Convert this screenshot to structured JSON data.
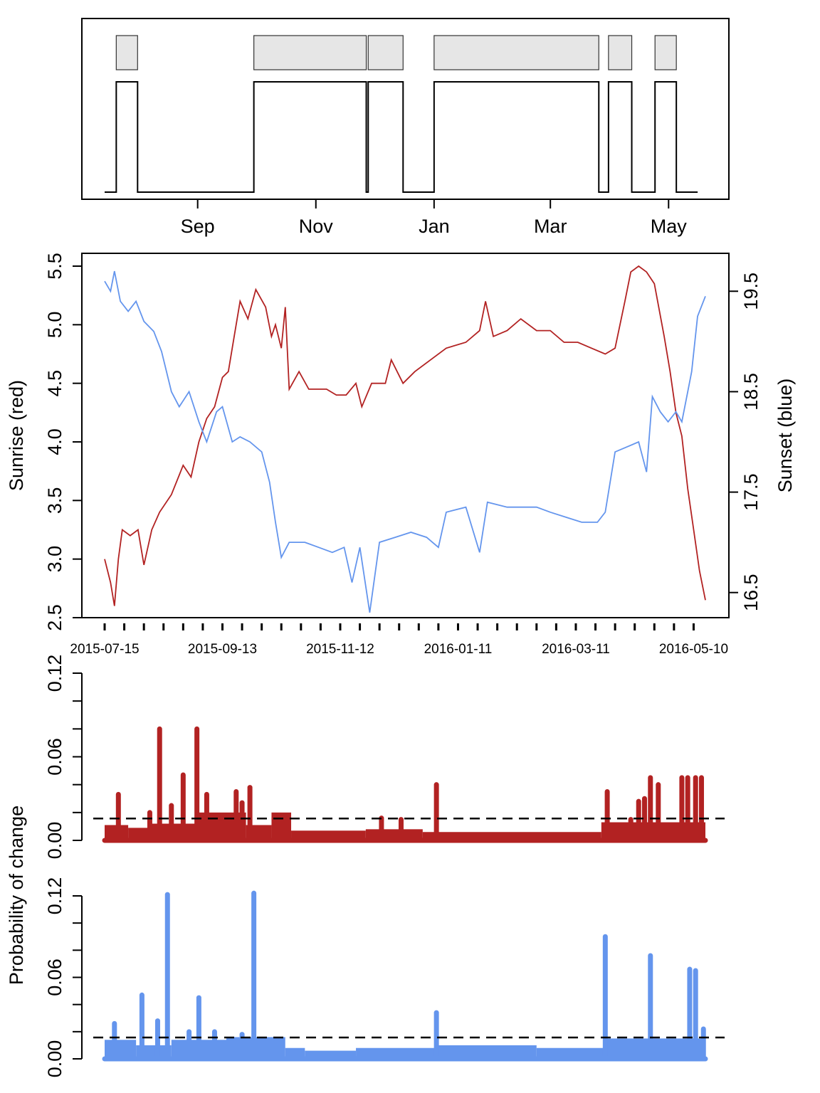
{
  "chart_data": [
    {
      "type": "step",
      "panel": "state-timeline",
      "x_unit": "date",
      "xlim": [
        "2015-07-15",
        "2016-05-20"
      ],
      "x_ticks": [
        {
          "date": "2015-09-01",
          "label": "Sep"
        },
        {
          "date": "2015-11-01",
          "label": "Nov"
        },
        {
          "date": "2016-01-01",
          "label": "Jan"
        },
        {
          "date": "2016-03-01",
          "label": "Mar"
        },
        {
          "date": "2016-05-01",
          "label": "May"
        }
      ],
      "segments": [
        {
          "start": "2015-07-21",
          "end": "2015-08-01"
        },
        {
          "start": "2015-09-30",
          "end": "2015-11-27"
        },
        {
          "start": "2015-11-28",
          "end": "2015-12-16"
        },
        {
          "start": "2016-01-01",
          "end": "2016-03-26"
        },
        {
          "start": "2016-03-31",
          "end": "2016-04-12"
        },
        {
          "start": "2016-04-24",
          "end": "2016-05-05"
        }
      ],
      "state_values": [
        {
          "date": "2015-07-15",
          "state": 0
        },
        {
          "date": "2015-07-21",
          "state": 1
        },
        {
          "date": "2015-08-01",
          "state": 0
        },
        {
          "date": "2015-09-30",
          "state": 1
        },
        {
          "date": "2015-11-27",
          "state": 0
        },
        {
          "date": "2015-11-28",
          "state": 1
        },
        {
          "date": "2015-12-16",
          "state": 0
        },
        {
          "date": "2016-01-01",
          "state": 1
        },
        {
          "date": "2016-03-26",
          "state": 0
        },
        {
          "date": "2016-03-31",
          "state": 1
        },
        {
          "date": "2016-04-12",
          "state": 0
        },
        {
          "date": "2016-04-24",
          "state": 1
        },
        {
          "date": "2016-05-05",
          "state": 0
        },
        {
          "date": "2016-05-16",
          "state": 0
        }
      ]
    },
    {
      "type": "line",
      "panel": "sunrise-sunset",
      "x_unit": "date",
      "xlim": [
        "2015-07-15",
        "2016-05-16"
      ],
      "x_tick_labels": [
        "2015-07-15",
        "2015-09-13",
        "2015-11-12",
        "2016-01-11",
        "2016-03-11",
        "2016-05-10"
      ],
      "x_tick_dates": [
        "2015-07-15",
        "2015-09-13",
        "2015-11-12",
        "2016-01-11",
        "2016-03-11",
        "2016-05-10"
      ],
      "ylabel": "Sunrise (red)",
      "ylim": [
        2.5,
        5.5
      ],
      "y_ticks": [
        "2.5",
        "3.0",
        "3.5",
        "4.0",
        "4.5",
        "5.0",
        "5.5"
      ],
      "y2label": "Sunset (blue)",
      "y2lim": [
        16.25,
        19.75
      ],
      "y2_ticks": [
        "16.5",
        "17.5",
        "18.5",
        "19.5"
      ],
      "series": [
        {
          "color": "#b22222",
          "axis": "left",
          "points": [
            [
              "2015-07-15",
              3.0
            ],
            [
              "2015-07-18",
              2.8
            ],
            [
              "2015-07-20",
              2.6
            ],
            [
              "2015-07-22",
              3.0
            ],
            [
              "2015-07-24",
              3.25
            ],
            [
              "2015-07-28",
              3.2
            ],
            [
              "2015-08-01",
              3.25
            ],
            [
              "2015-08-04",
              2.95
            ],
            [
              "2015-08-08",
              3.25
            ],
            [
              "2015-08-12",
              3.4
            ],
            [
              "2015-08-18",
              3.55
            ],
            [
              "2015-08-24",
              3.8
            ],
            [
              "2015-08-28",
              3.7
            ],
            [
              "2015-09-01",
              4.0
            ],
            [
              "2015-09-05",
              4.2
            ],
            [
              "2015-09-09",
              4.3
            ],
            [
              "2015-09-13",
              4.55
            ],
            [
              "2015-09-16",
              4.6
            ],
            [
              "2015-09-19",
              4.9
            ],
            [
              "2015-09-22",
              5.2
            ],
            [
              "2015-09-26",
              5.05
            ],
            [
              "2015-09-30",
              5.3
            ],
            [
              "2015-10-05",
              5.15
            ],
            [
              "2015-10-08",
              4.9
            ],
            [
              "2015-10-10",
              5.0
            ],
            [
              "2015-10-13",
              4.8
            ],
            [
              "2015-10-15",
              5.15
            ],
            [
              "2015-10-17",
              4.45
            ],
            [
              "2015-10-22",
              4.6
            ],
            [
              "2015-10-27",
              4.45
            ],
            [
              "2015-11-05",
              4.45
            ],
            [
              "2015-11-10",
              4.4
            ],
            [
              "2015-11-15",
              4.4
            ],
            [
              "2015-11-20",
              4.5
            ],
            [
              "2015-11-23",
              4.3
            ],
            [
              "2015-11-28",
              4.5
            ],
            [
              "2015-12-05",
              4.5
            ],
            [
              "2015-12-08",
              4.7
            ],
            [
              "2015-12-14",
              4.5
            ],
            [
              "2015-12-20",
              4.6
            ],
            [
              "2015-12-28",
              4.7
            ],
            [
              "2016-01-05",
              4.8
            ],
            [
              "2016-01-15",
              4.85
            ],
            [
              "2016-01-22",
              4.95
            ],
            [
              "2016-01-25",
              5.2
            ],
            [
              "2016-01-29",
              4.9
            ],
            [
              "2016-02-05",
              4.95
            ],
            [
              "2016-02-12",
              5.05
            ],
            [
              "2016-02-20",
              4.95
            ],
            [
              "2016-02-27",
              4.95
            ],
            [
              "2016-03-05",
              4.85
            ],
            [
              "2016-03-12",
              4.85
            ],
            [
              "2016-03-19",
              4.8
            ],
            [
              "2016-03-26",
              4.75
            ],
            [
              "2016-03-31",
              4.8
            ],
            [
              "2016-04-05",
              5.2
            ],
            [
              "2016-04-08",
              5.45
            ],
            [
              "2016-04-12",
              5.5
            ],
            [
              "2016-04-16",
              5.45
            ],
            [
              "2016-04-20",
              5.35
            ],
            [
              "2016-04-25",
              4.9
            ],
            [
              "2016-04-28",
              4.6
            ],
            [
              "2016-05-01",
              4.25
            ],
            [
              "2016-05-04",
              4.05
            ],
            [
              "2016-05-07",
              3.6
            ],
            [
              "2016-05-10",
              3.25
            ],
            [
              "2016-05-13",
              2.9
            ],
            [
              "2016-05-16",
              2.65
            ]
          ]
        },
        {
          "color": "#6495ed",
          "axis": "right",
          "points": [
            [
              "2015-07-15",
              19.6
            ],
            [
              "2015-07-18",
              19.5
            ],
            [
              "2015-07-20",
              19.7
            ],
            [
              "2015-07-23",
              19.4
            ],
            [
              "2015-07-27",
              19.3
            ],
            [
              "2015-07-31",
              19.4
            ],
            [
              "2015-08-04",
              19.2
            ],
            [
              "2015-08-09",
              19.1
            ],
            [
              "2015-08-13",
              18.9
            ],
            [
              "2015-08-18",
              18.5
            ],
            [
              "2015-08-22",
              18.35
            ],
            [
              "2015-08-27",
              18.5
            ],
            [
              "2015-09-01",
              18.2
            ],
            [
              "2015-09-05",
              18.0
            ],
            [
              "2015-09-10",
              18.3
            ],
            [
              "2015-09-13",
              18.35
            ],
            [
              "2015-09-18",
              18.0
            ],
            [
              "2015-09-22",
              18.05
            ],
            [
              "2015-09-27",
              18.0
            ],
            [
              "2015-10-03",
              17.9
            ],
            [
              "2015-10-07",
              17.6
            ],
            [
              "2015-10-10",
              17.2
            ],
            [
              "2015-10-13",
              16.85
            ],
            [
              "2015-10-17",
              17.0
            ],
            [
              "2015-10-25",
              17.0
            ],
            [
              "2015-11-01",
              16.95
            ],
            [
              "2015-11-08",
              16.9
            ],
            [
              "2015-11-14",
              16.95
            ],
            [
              "2015-11-18",
              16.6
            ],
            [
              "2015-11-22",
              16.95
            ],
            [
              "2015-11-27",
              16.3
            ],
            [
              "2015-12-02",
              17.0
            ],
            [
              "2015-12-10",
              17.05
            ],
            [
              "2015-12-18",
              17.1
            ],
            [
              "2015-12-26",
              17.05
            ],
            [
              "2016-01-01",
              16.95
            ],
            [
              "2016-01-05",
              17.3
            ],
            [
              "2016-01-15",
              17.35
            ],
            [
              "2016-01-22",
              16.9
            ],
            [
              "2016-01-26",
              17.4
            ],
            [
              "2016-02-05",
              17.35
            ],
            [
              "2016-02-13",
              17.35
            ],
            [
              "2016-02-20",
              17.35
            ],
            [
              "2016-02-27",
              17.3
            ],
            [
              "2016-03-06",
              17.25
            ],
            [
              "2016-03-14",
              17.2
            ],
            [
              "2016-03-22",
              17.2
            ],
            [
              "2016-03-26",
              17.3
            ],
            [
              "2016-03-31",
              17.9
            ],
            [
              "2016-04-06",
              17.95
            ],
            [
              "2016-04-12",
              18.0
            ],
            [
              "2016-04-16",
              17.7
            ],
            [
              "2016-04-19",
              18.45
            ],
            [
              "2016-04-23",
              18.3
            ],
            [
              "2016-04-27",
              18.2
            ],
            [
              "2016-05-01",
              18.3
            ],
            [
              "2016-05-04",
              18.2
            ],
            [
              "2016-05-07",
              18.5
            ],
            [
              "2016-05-09",
              18.7
            ],
            [
              "2016-05-12",
              19.25
            ],
            [
              "2016-05-16",
              19.45
            ]
          ]
        }
      ]
    },
    {
      "type": "bar",
      "panel": "probability-sunrise",
      "x_unit": "date",
      "xlim": [
        "2015-07-15",
        "2016-05-16"
      ],
      "ylabel": "Probability of change",
      "ylim": [
        0,
        0.12
      ],
      "y_ticks": [
        "0.00",
        "0.06",
        "0.12"
      ],
      "threshold": 0.0157,
      "color": "#b22222",
      "baseline_spans": [
        {
          "start": "2015-07-15",
          "end": "2015-07-27",
          "value": 0.011
        },
        {
          "start": "2015-07-27",
          "end": "2015-08-08",
          "value": 0.009
        },
        {
          "start": "2015-08-08",
          "end": "2015-09-01",
          "value": 0.012
        },
        {
          "start": "2015-09-01",
          "end": "2015-09-25",
          "value": 0.02
        },
        {
          "start": "2015-09-25",
          "end": "2015-10-08",
          "value": 0.011
        },
        {
          "start": "2015-10-08",
          "end": "2015-10-18",
          "value": 0.02
        },
        {
          "start": "2015-10-18",
          "end": "2015-11-25",
          "value": 0.007
        },
        {
          "start": "2015-11-25",
          "end": "2015-12-24",
          "value": 0.008
        },
        {
          "start": "2015-12-24",
          "end": "2016-03-24",
          "value": 0.006
        },
        {
          "start": "2016-03-24",
          "end": "2016-05-16",
          "value": 0.013
        }
      ],
      "spikes": [
        [
          "2015-07-22",
          0.033
        ],
        [
          "2015-08-07",
          0.02
        ],
        [
          "2015-08-12",
          0.08
        ],
        [
          "2015-08-18",
          0.025
        ],
        [
          "2015-08-24",
          0.047
        ],
        [
          "2015-08-31",
          0.08
        ],
        [
          "2015-09-05",
          0.033
        ],
        [
          "2015-09-12",
          0.013
        ],
        [
          "2015-09-20",
          0.035
        ],
        [
          "2015-09-23",
          0.027
        ],
        [
          "2015-09-27",
          0.038
        ],
        [
          "2015-10-10",
          0.014
        ],
        [
          "2015-12-03",
          0.016
        ],
        [
          "2015-12-13",
          0.015
        ],
        [
          "2015-12-31",
          0.04
        ],
        [
          "2016-03-27",
          0.035
        ],
        [
          "2016-04-08",
          0.015
        ],
        [
          "2016-04-12",
          0.028
        ],
        [
          "2016-04-15",
          0.03
        ],
        [
          "2016-04-18",
          0.045
        ],
        [
          "2016-04-22",
          0.04
        ],
        [
          "2016-05-04",
          0.045
        ],
        [
          "2016-05-07",
          0.045
        ],
        [
          "2016-05-11",
          0.045
        ],
        [
          "2016-05-14",
          0.045
        ]
      ]
    },
    {
      "type": "bar",
      "panel": "probability-sunset",
      "x_unit": "date",
      "xlim": [
        "2015-07-15",
        "2016-05-16"
      ],
      "ylabel": "Probability of change",
      "ylim": [
        0,
        0.12
      ],
      "y_ticks": [
        "0.00",
        "0.06",
        "0.12"
      ],
      "threshold": 0.0157,
      "color": "#6495ed",
      "baseline_spans": [
        {
          "start": "2015-07-15",
          "end": "2015-07-31",
          "value": 0.014
        },
        {
          "start": "2015-07-31",
          "end": "2015-08-18",
          "value": 0.01
        },
        {
          "start": "2015-08-18",
          "end": "2015-09-15",
          "value": 0.014
        },
        {
          "start": "2015-09-15",
          "end": "2015-10-15",
          "value": 0.016
        },
        {
          "start": "2015-10-15",
          "end": "2015-10-25",
          "value": 0.008
        },
        {
          "start": "2015-10-25",
          "end": "2015-11-20",
          "value": 0.006
        },
        {
          "start": "2015-11-20",
          "end": "2016-01-01",
          "value": 0.008
        },
        {
          "start": "2016-01-01",
          "end": "2016-02-20",
          "value": 0.01
        },
        {
          "start": "2016-02-20",
          "end": "2016-03-26",
          "value": 0.008
        },
        {
          "start": "2016-03-26",
          "end": "2016-05-16",
          "value": 0.015
        }
      ],
      "spikes": [
        [
          "2015-07-20",
          0.026
        ],
        [
          "2015-08-03",
          0.047
        ],
        [
          "2015-08-11",
          0.028
        ],
        [
          "2015-08-16",
          0.121
        ],
        [
          "2015-08-27",
          0.02
        ],
        [
          "2015-09-01",
          0.045
        ],
        [
          "2015-09-09",
          0.02
        ],
        [
          "2015-09-23",
          0.018
        ],
        [
          "2015-09-29",
          0.122
        ],
        [
          "2015-12-31",
          0.034
        ],
        [
          "2016-03-26",
          0.09
        ],
        [
          "2016-04-18",
          0.076
        ],
        [
          "2016-05-08",
          0.066
        ],
        [
          "2016-05-11",
          0.065
        ],
        [
          "2016-05-15",
          0.022
        ]
      ]
    }
  ]
}
